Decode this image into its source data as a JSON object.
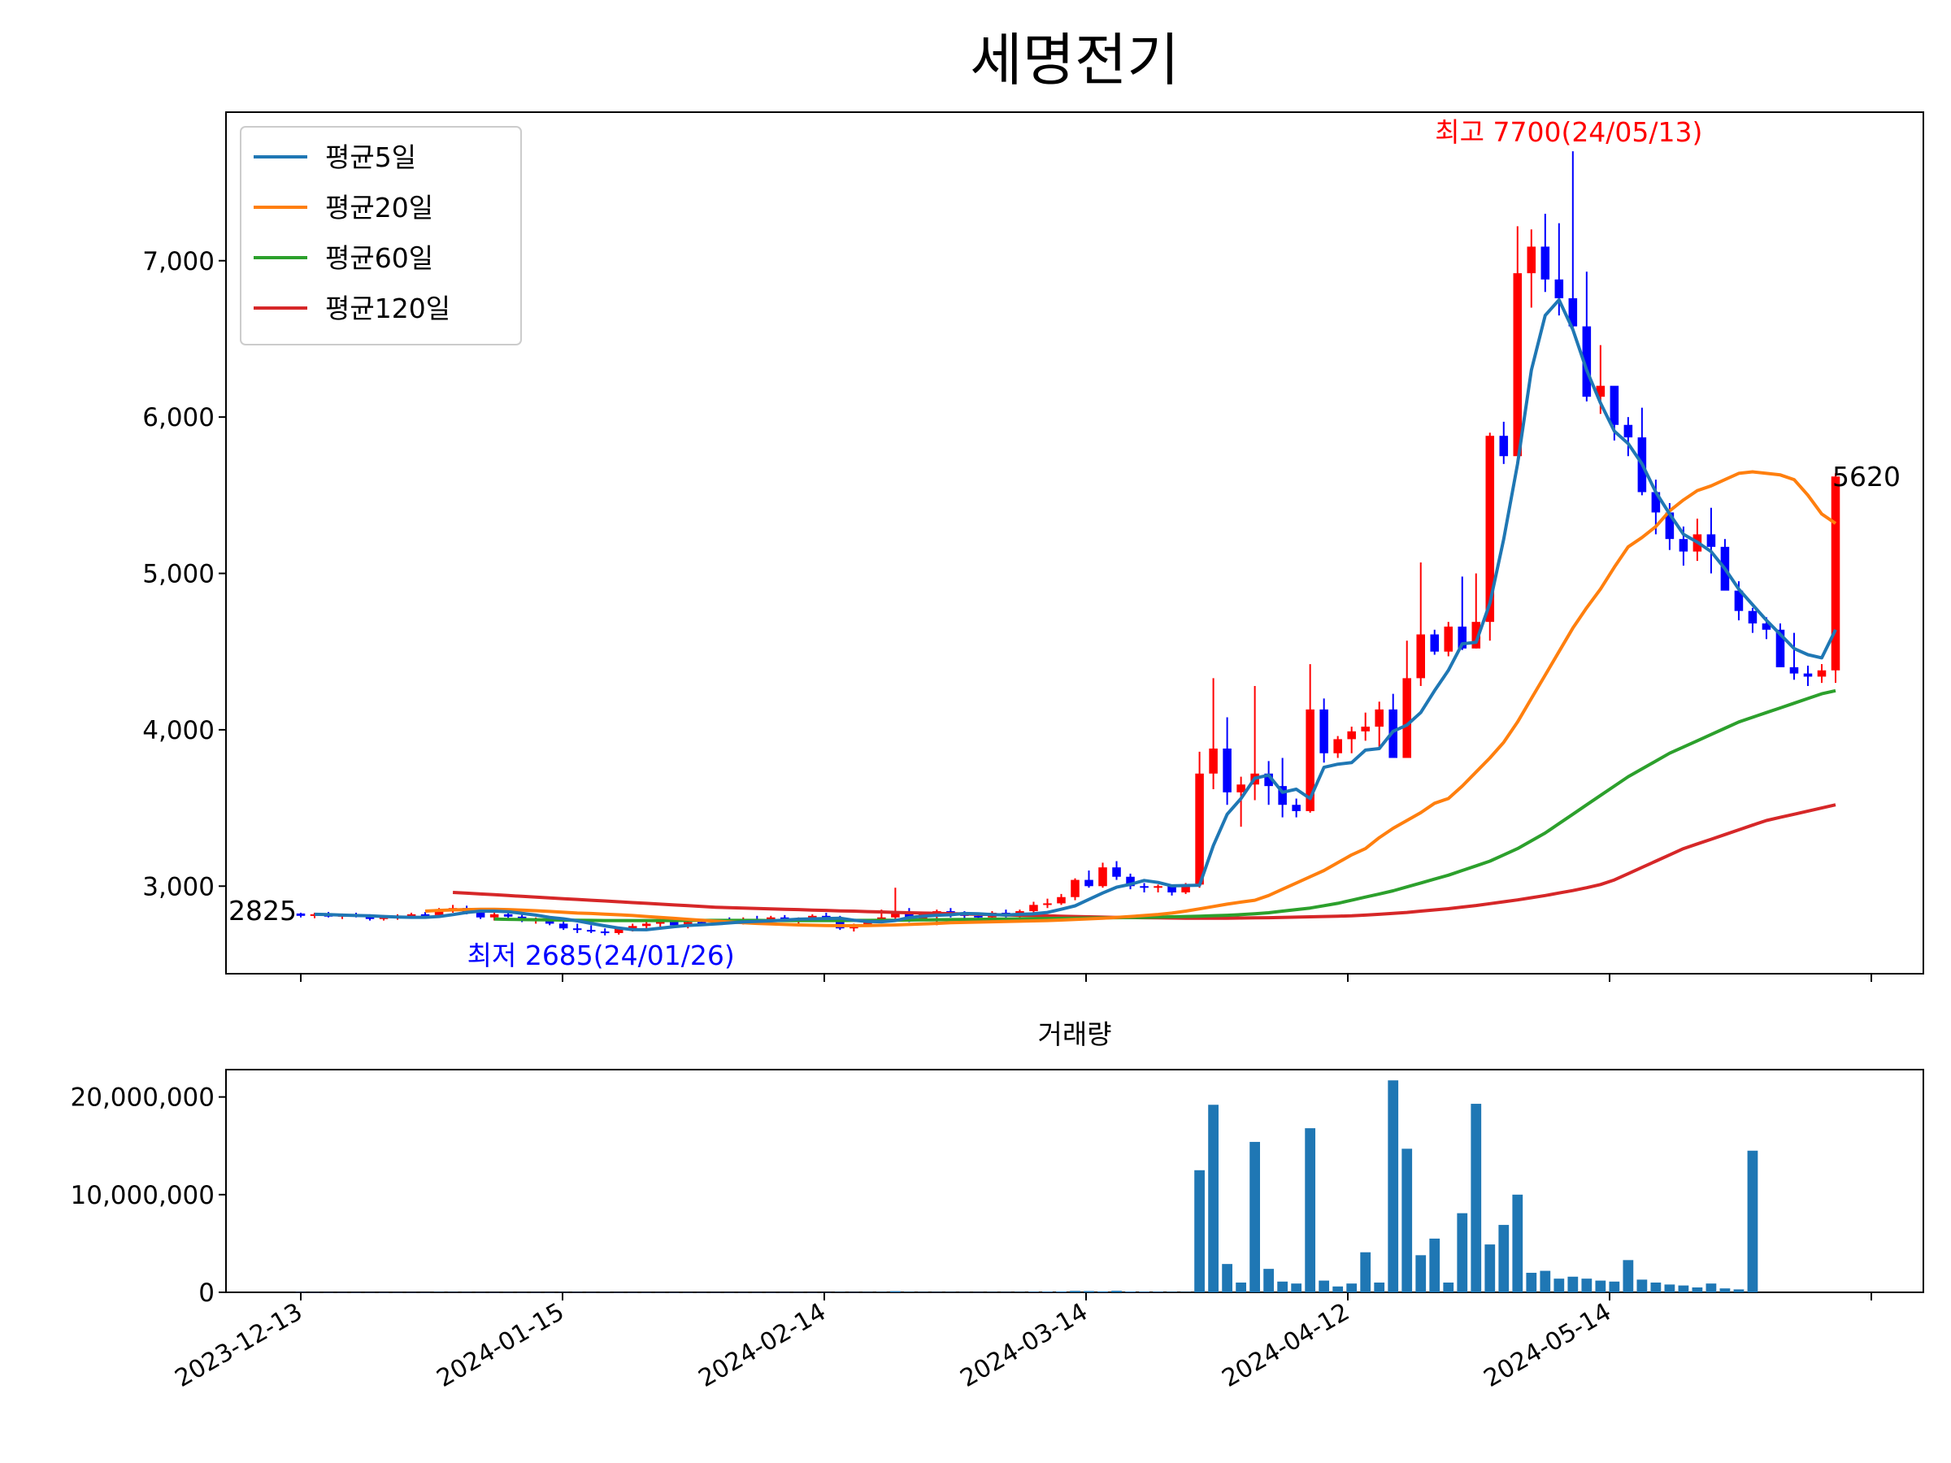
{
  "chart_data": [
    {
      "type": "candlestick",
      "title": "세명전기",
      "y_ticks": [
        3000,
        4000,
        5000,
        6000,
        7000
      ],
      "y_tick_labels": [
        "3,000",
        "4,000",
        "5,000",
        "6,000",
        "7,000"
      ],
      "ylim": [
        2440,
        7950
      ],
      "x_tick_labels": [
        "2023-12-13",
        "2024-01-15",
        "2024-02-14",
        "2024-03-14",
        "2024-04-12",
        "2024-05-14"
      ],
      "legend": {
        "position": "upper-left",
        "entries": [
          {
            "label": "평균5일",
            "color": "#1f77b4"
          },
          {
            "label": "평균20일",
            "color": "#ff7f0e"
          },
          {
            "label": "평균60일",
            "color": "#2ca02c"
          },
          {
            "label": "평균120일",
            "color": "#d62728"
          }
        ]
      },
      "annotations": {
        "high": {
          "text": "최고 7700(24/05/13)",
          "color": "#ff0000",
          "value": 7700,
          "date": "24/05/13"
        },
        "low": {
          "text": "최저 2685(24/01/26)",
          "color": "#0000ff",
          "value": 2685,
          "date": "24/01/26"
        },
        "first": {
          "text": "2825",
          "value": 2825
        },
        "last": {
          "text": "5620",
          "value": 5620
        }
      },
      "up_color": "#ff0000",
      "down_color": "#0000ff",
      "candles_ohlc": [
        [
          2825,
          2830,
          2800,
          2810
        ],
        [
          2810,
          2830,
          2795,
          2820
        ],
        [
          2820,
          2835,
          2800,
          2805
        ],
        [
          2805,
          2825,
          2790,
          2815
        ],
        [
          2815,
          2830,
          2800,
          2810
        ],
        [
          2810,
          2820,
          2780,
          2790
        ],
        [
          2790,
          2815,
          2780,
          2800
        ],
        [
          2800,
          2820,
          2785,
          2805
        ],
        [
          2805,
          2830,
          2795,
          2820
        ],
        [
          2820,
          2835,
          2800,
          2815
        ],
        [
          2815,
          2860,
          2805,
          2850
        ],
        [
          2850,
          2880,
          2830,
          2860
        ],
        [
          2860,
          2875,
          2820,
          2830
        ],
        [
          2830,
          2845,
          2790,
          2800
        ],
        [
          2800,
          2830,
          2780,
          2820
        ],
        [
          2820,
          2840,
          2795,
          2805
        ],
        [
          2805,
          2820,
          2770,
          2780
        ],
        [
          2780,
          2800,
          2760,
          2790
        ],
        [
          2790,
          2800,
          2750,
          2760
        ],
        [
          2760,
          2780,
          2720,
          2730
        ],
        [
          2730,
          2760,
          2700,
          2720
        ],
        [
          2720,
          2750,
          2700,
          2710
        ],
        [
          2710,
          2730,
          2685,
          2700
        ],
        [
          2700,
          2740,
          2690,
          2730
        ],
        [
          2730,
          2760,
          2710,
          2745
        ],
        [
          2745,
          2780,
          2730,
          2760
        ],
        [
          2760,
          2790,
          2740,
          2770
        ],
        [
          2770,
          2790,
          2740,
          2750
        ],
        [
          2750,
          2780,
          2730,
          2770
        ],
        [
          2770,
          2790,
          2750,
          2765
        ],
        [
          2765,
          2790,
          2750,
          2780
        ],
        [
          2780,
          2800,
          2760,
          2770
        ],
        [
          2770,
          2800,
          2755,
          2790
        ],
        [
          2790,
          2810,
          2770,
          2785
        ],
        [
          2785,
          2810,
          2770,
          2800
        ],
        [
          2800,
          2815,
          2775,
          2780
        ],
        [
          2780,
          2800,
          2760,
          2790
        ],
        [
          2790,
          2820,
          2780,
          2810
        ],
        [
          2810,
          2830,
          2790,
          2800
        ],
        [
          2800,
          2810,
          2720,
          2730
        ],
        [
          2730,
          2760,
          2710,
          2750
        ],
        [
          2750,
          2790,
          2740,
          2780
        ],
        [
          2780,
          2850,
          2770,
          2800
        ],
        [
          2800,
          2990,
          2790,
          2830
        ],
        [
          2830,
          2860,
          2770,
          2790
        ],
        [
          2790,
          2830,
          2780,
          2820
        ],
        [
          2820,
          2850,
          2750,
          2840
        ],
        [
          2840,
          2860,
          2800,
          2820
        ],
        [
          2820,
          2840,
          2790,
          2810
        ],
        [
          2810,
          2830,
          2780,
          2800
        ],
        [
          2800,
          2840,
          2790,
          2830
        ],
        [
          2830,
          2850,
          2800,
          2810
        ],
        [
          2810,
          2850,
          2790,
          2840
        ],
        [
          2840,
          2900,
          2830,
          2880
        ],
        [
          2880,
          2920,
          2860,
          2890
        ],
        [
          2890,
          2950,
          2880,
          2930
        ],
        [
          2930,
          3050,
          2910,
          3040
        ],
        [
          3040,
          3100,
          2990,
          3000
        ],
        [
          3000,
          3150,
          2990,
          3120
        ],
        [
          3120,
          3160,
          3040,
          3060
        ],
        [
          3060,
          3080,
          2980,
          3000
        ],
        [
          3000,
          3020,
          2960,
          2990
        ],
        [
          2990,
          3010,
          2960,
          3000
        ],
        [
          3000,
          3010,
          2940,
          2960
        ],
        [
          2960,
          3020,
          2950,
          3010
        ],
        [
          3010,
          3860,
          2990,
          3720
        ],
        [
          3720,
          4330,
          3620,
          3880
        ],
        [
          3880,
          4080,
          3520,
          3600
        ],
        [
          3600,
          3700,
          3380,
          3650
        ],
        [
          3650,
          4280,
          3550,
          3720
        ],
        [
          3720,
          3800,
          3520,
          3640
        ],
        [
          3640,
          3820,
          3440,
          3520
        ],
        [
          3520,
          3560,
          3440,
          3480
        ],
        [
          3480,
          4420,
          3470,
          4130
        ],
        [
          4130,
          4200,
          3790,
          3850
        ],
        [
          3850,
          3960,
          3820,
          3940
        ],
        [
          3940,
          4020,
          3850,
          3990
        ],
        [
          3990,
          4110,
          3930,
          4020
        ],
        [
          4020,
          4180,
          3880,
          4130
        ],
        [
          4130,
          4230,
          3970,
          3820
        ],
        [
          3820,
          4570,
          3820,
          4330
        ],
        [
          4330,
          5070,
          4280,
          4610
        ],
        [
          4610,
          4640,
          4480,
          4500
        ],
        [
          4500,
          4690,
          4470,
          4660
        ],
        [
          4660,
          4980,
          4510,
          4520
        ],
        [
          4520,
          5000,
          4520,
          4690
        ],
        [
          4690,
          5900,
          4570,
          5880
        ],
        [
          5880,
          5970,
          5700,
          5750
        ],
        [
          5750,
          7220,
          6420,
          6920
        ],
        [
          6920,
          7200,
          6700,
          7090
        ],
        [
          7090,
          7300,
          6800,
          6880
        ],
        [
          6880,
          7240,
          6650,
          6760
        ],
        [
          6760,
          7700,
          6570,
          6580
        ],
        [
          6580,
          6930,
          6100,
          6130
        ],
        [
          6130,
          6460,
          6020,
          6200
        ],
        [
          6200,
          6130,
          5850,
          5950
        ],
        [
          5950,
          6000,
          5750,
          5870
        ],
        [
          5870,
          6060,
          5500,
          5520
        ],
        [
          5520,
          5600,
          5250,
          5390
        ],
        [
          5390,
          5450,
          5150,
          5220
        ],
        [
          5220,
          5300,
          5050,
          5140
        ],
        [
          5140,
          5350,
          5080,
          5250
        ],
        [
          5250,
          5420,
          5000,
          5170
        ],
        [
          5170,
          5220,
          4900,
          4890
        ],
        [
          4890,
          4950,
          4700,
          4760
        ],
        [
          4760,
          4780,
          4620,
          4680
        ],
        [
          4680,
          4720,
          4580,
          4640
        ],
        [
          4640,
          4680,
          4500,
          4400
        ],
        [
          4400,
          4620,
          4320,
          4360
        ],
        [
          4360,
          4410,
          4280,
          4340
        ],
        [
          4340,
          4420,
          4300,
          4380
        ],
        [
          4380,
          5640,
          4300,
          5620
        ]
      ],
      "ma5": [
        2820,
        2818,
        2815,
        2812,
        2810,
        2806,
        2803,
        2801,
        2801,
        2806,
        2818,
        2832,
        2840,
        2840,
        2836,
        2826,
        2815,
        2800,
        2791,
        2778,
        2762,
        2746,
        2732,
        2722,
        2721,
        2731,
        2741,
        2749,
        2753,
        2758,
        2765,
        2771,
        2775,
        2778,
        2783,
        2789,
        2791,
        2793,
        2795,
        2782,
        2774,
        2772,
        2780,
        2799,
        2808,
        2814,
        2817,
        2825,
        2823,
        2818,
        2816,
        2820,
        2823,
        2832,
        2852,
        2874,
        2915,
        2956,
        2993,
        3012,
        3036,
        3024,
        3002,
        3004,
        3006,
        3260,
        3460,
        3560,
        3690,
        3710,
        3600,
        3620,
        3560,
        3760,
        3780,
        3790,
        3870,
        3880,
        3990,
        4030,
        4110,
        4250,
        4380,
        4550,
        4560,
        4810,
        5220,
        5700,
        6300,
        6650,
        6750,
        6560,
        6300,
        6090,
        5910,
        5830,
        5700,
        5520,
        5380,
        5250,
        5200,
        5140,
        5030,
        4900,
        4800,
        4700,
        4610,
        4520,
        4480,
        4460,
        4640
      ],
      "ma20": [
        2840,
        2845,
        2848,
        2850,
        2852,
        2852,
        2850,
        2847,
        2843,
        2838,
        2833,
        2828,
        2825,
        2821,
        2817,
        2812,
        2806,
        2800,
        2794,
        2788,
        2782,
        2776,
        2771,
        2766,
        2762,
        2758,
        2755,
        2752,
        2750,
        2748,
        2747,
        2747,
        2748,
        2750,
        2752,
        2755,
        2758,
        2762,
        2766,
        2768,
        2770,
        2772,
        2774,
        2776,
        2778,
        2780,
        2783,
        2787,
        2791,
        2795,
        2800,
        2806,
        2812,
        2819,
        2828,
        2840,
        2855,
        2870,
        2885,
        2898,
        2910,
        2940,
        2980,
        3020,
        3060,
        3100,
        3150,
        3200,
        3240,
        3310,
        3370,
        3420,
        3470,
        3530,
        3560,
        3640,
        3730,
        3820,
        3920,
        4050,
        4200,
        4350,
        4500,
        4650,
        4780,
        4900,
        5040,
        5170,
        5230,
        5300,
        5400,
        5470,
        5530,
        5560,
        5600,
        5640,
        5650,
        5640,
        5630,
        5600,
        5500,
        5380,
        5320
      ],
      "ma60": [
        2790,
        2788,
        2786,
        2785,
        2784,
        2783,
        2782,
        2781,
        2780,
        2780,
        2780,
        2780,
        2780,
        2780,
        2781,
        2781,
        2781,
        2781,
        2781,
        2781,
        2780,
        2780,
        2780,
        2780,
        2780,
        2780,
        2781,
        2781,
        2782,
        2782,
        2783,
        2784,
        2785,
        2786,
        2787,
        2788,
        2789,
        2790,
        2791,
        2792,
        2793,
        2794,
        2795,
        2796,
        2797,
        2798,
        2799,
        2800,
        2802,
        2804,
        2806,
        2808,
        2811,
        2814,
        2818,
        2823,
        2830,
        2840,
        2850,
        2860,
        2875,
        2890,
        2910,
        2930,
        2950,
        2970,
        2995,
        3020,
        3045,
        3070,
        3100,
        3130,
        3160,
        3200,
        3240,
        3290,
        3340,
        3400,
        3460,
        3520,
        3580,
        3640,
        3700,
        3750,
        3800,
        3850,
        3890,
        3930,
        3970,
        4010,
        4050,
        4080,
        4110,
        4140,
        4170,
        4200,
        4230,
        4250
      ],
      "ma120": [
        2960,
        2955,
        2950,
        2945,
        2940,
        2935,
        2930,
        2925,
        2920,
        2915,
        2910,
        2905,
        2900,
        2895,
        2890,
        2885,
        2880,
        2875,
        2870,
        2865,
        2862,
        2860,
        2857,
        2855,
        2852,
        2850,
        2847,
        2845,
        2842,
        2840,
        2837,
        2835,
        2832,
        2830,
        2828,
        2826,
        2824,
        2822,
        2820,
        2818,
        2816,
        2814,
        2812,
        2810,
        2808,
        2806,
        2804,
        2802,
        2800,
        2799,
        2798,
        2797,
        2796,
        2795,
        2795,
        2795,
        2795,
        2796,
        2797,
        2798,
        2800,
        2802,
        2804,
        2806,
        2808,
        2810,
        2815,
        2820,
        2826,
        2832,
        2840,
        2848,
        2856,
        2866,
        2876,
        2888,
        2900,
        2912,
        2926,
        2940,
        2956,
        2972,
        2990,
        3010,
        3040,
        3080,
        3120,
        3160,
        3200,
        3240,
        3270,
        3300,
        3330,
        3360,
        3390,
        3420,
        3440,
        3460,
        3480,
        3500,
        3520
      ]
    },
    {
      "type": "bar",
      "title": "거래량",
      "y_ticks": [
        0,
        10000000,
        20000000
      ],
      "y_tick_labels": [
        "0",
        "10,000,000",
        "20,000,000"
      ],
      "ylim": [
        0,
        22800000
      ],
      "color": "#1f77b4",
      "values": [
        20000,
        15000,
        10000,
        12000,
        9000,
        11000,
        8000,
        10000,
        13000,
        9000,
        30000,
        25000,
        18000,
        14000,
        12000,
        15000,
        11000,
        13000,
        9000,
        16000,
        20000,
        14000,
        22000,
        12000,
        10000,
        9000,
        11000,
        8000,
        9000,
        10000,
        12000,
        9000,
        11000,
        10000,
        9000,
        13000,
        15000,
        10000,
        9000,
        30000,
        20000,
        25000,
        35000,
        120000,
        40000,
        30000,
        25000,
        28000,
        22000,
        20000,
        30000,
        25000,
        35000,
        60000,
        70000,
        90000,
        150000,
        130000,
        100000,
        160000,
        80000,
        70000,
        60000,
        50000,
        40000,
        12500000,
        19200000,
        2900000,
        1000000,
        15400000,
        2400000,
        1100000,
        900000,
        16800000,
        1200000,
        600000,
        900000,
        4100000,
        1000000,
        21700000,
        14700000,
        3800000,
        5500000,
        1000000,
        8100000,
        19300000,
        4900000,
        6900000,
        10000000,
        2000000,
        2200000,
        1400000,
        1600000,
        1400000,
        1200000,
        1100000,
        3300000,
        1300000,
        1000000,
        800000,
        700000,
        500000,
        900000,
        400000,
        300000,
        14500000
      ]
    }
  ]
}
